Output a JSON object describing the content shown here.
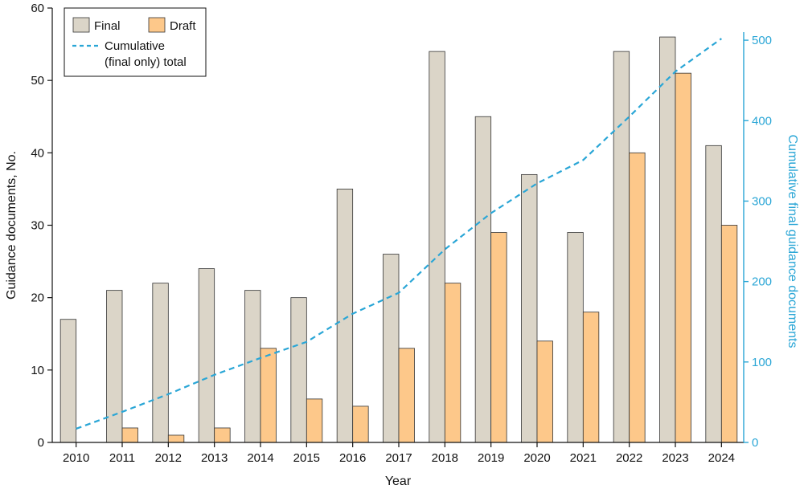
{
  "colors": {
    "final": "#dbd5c8",
    "draft": "#fdc88a",
    "bar_stroke": "#333333",
    "cumulative": "#2aa6d6",
    "axis": "#111111",
    "right_axis": "#2aa6d6"
  },
  "chart_data": {
    "type": "bar",
    "categories": [
      "2010",
      "2011",
      "2012",
      "2013",
      "2014",
      "2015",
      "2016",
      "2017",
      "2018",
      "2019",
      "2020",
      "2021",
      "2022",
      "2023",
      "2024"
    ],
    "series": [
      {
        "name": "Final",
        "type": "bar",
        "axis": "left",
        "values": [
          17,
          21,
          22,
          24,
          21,
          20,
          35,
          26,
          54,
          45,
          37,
          29,
          54,
          56,
          41
        ]
      },
      {
        "name": "Draft",
        "type": "bar",
        "axis": "left",
        "values": [
          null,
          2,
          1,
          2,
          13,
          6,
          5,
          13,
          22,
          29,
          14,
          18,
          40,
          51,
          30
        ]
      },
      {
        "name": "Cumulative (final only) total",
        "legend_lines": [
          "Cumulative",
          "(final only) total"
        ],
        "type": "line",
        "style": "dashed",
        "axis": "right",
        "values": [
          17,
          38,
          60,
          84,
          105,
          125,
          160,
          186,
          240,
          285,
          322,
          351,
          405,
          461,
          502
        ]
      }
    ],
    "xlabel": "Year",
    "ylabel": "Guidance documents, No.",
    "ylabel_right": "Cumulative final guidance documents",
    "ylim": [
      0,
      60
    ],
    "ylim_right": [
      0,
      540
    ],
    "yticks": [
      0,
      10,
      20,
      30,
      40,
      50,
      60
    ],
    "yticks_right": [
      0,
      100,
      200,
      300,
      400,
      500
    ],
    "grid": false,
    "legend_position": "top-left"
  }
}
